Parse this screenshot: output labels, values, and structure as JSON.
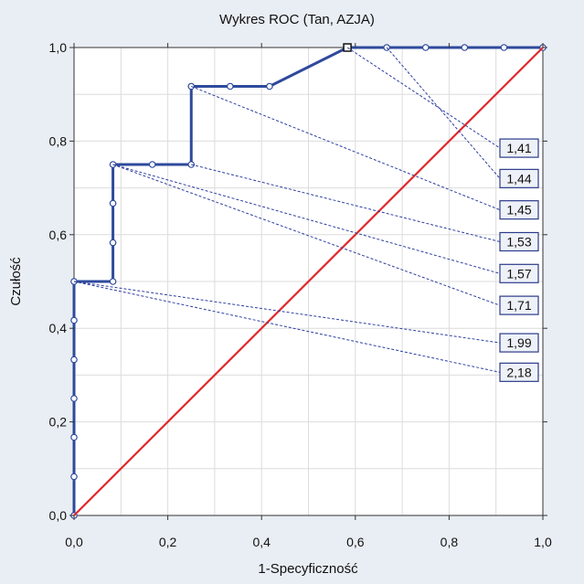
{
  "chart_data": {
    "type": "line",
    "title": "Wykres ROC (Tan, AZJA)",
    "xlabel": "1-Specyficzność",
    "ylabel": "Czułość",
    "xlim": [
      0.0,
      1.0
    ],
    "ylim": [
      0.0,
      1.0
    ],
    "x_ticks": [
      "0,0",
      "0,2",
      "0,4",
      "0,6",
      "0,8",
      "1,0"
    ],
    "y_ticks": [
      "0,0",
      "0,2",
      "0,4",
      "0,6",
      "0,8",
      "1,0"
    ],
    "grid": true,
    "series": [
      {
        "role": "roc-curve",
        "color": "#2e4a9c",
        "points": [
          [
            0.0,
            0.0
          ],
          [
            0.0,
            0.083
          ],
          [
            0.0,
            0.167
          ],
          [
            0.0,
            0.25
          ],
          [
            0.0,
            0.333
          ],
          [
            0.0,
            0.417
          ],
          [
            0.0,
            0.5
          ],
          [
            0.083,
            0.5
          ],
          [
            0.083,
            0.583
          ],
          [
            0.083,
            0.667
          ],
          [
            0.083,
            0.75
          ],
          [
            0.167,
            0.75
          ],
          [
            0.25,
            0.75
          ],
          [
            0.25,
            0.917
          ],
          [
            0.333,
            0.917
          ],
          [
            0.417,
            0.917
          ],
          [
            0.583,
            1.0
          ],
          [
            0.667,
            1.0
          ],
          [
            0.75,
            1.0
          ],
          [
            0.833,
            1.0
          ],
          [
            0.917,
            1.0
          ],
          [
            1.0,
            1.0
          ]
        ],
        "highlight_point": [
          0.583,
          1.0
        ]
      },
      {
        "role": "reference-diagonal",
        "color": "#e0282d",
        "points": [
          [
            0.0,
            0.0
          ],
          [
            1.0,
            1.0
          ]
        ]
      }
    ],
    "annotations": [
      {
        "label": "1,41",
        "x": 0.583,
        "y": 1.0,
        "label_y": 0.785
      },
      {
        "label": "1,44",
        "x": 0.667,
        "y": 1.0,
        "label_y": 0.72
      },
      {
        "label": "1,45",
        "x": 0.25,
        "y": 0.917,
        "label_y": 0.653
      },
      {
        "label": "1,53",
        "x": 0.25,
        "y": 0.75,
        "label_y": 0.585
      },
      {
        "label": "1,57",
        "x": 0.083,
        "y": 0.75,
        "label_y": 0.517
      },
      {
        "label": "1,71",
        "x": 0.083,
        "y": 0.75,
        "label_y": 0.449
      },
      {
        "label": "1,99",
        "x": 0.0,
        "y": 0.5,
        "label_y": 0.369
      },
      {
        "label": "2,18",
        "x": 0.0,
        "y": 0.5,
        "label_y": 0.306
      }
    ]
  }
}
